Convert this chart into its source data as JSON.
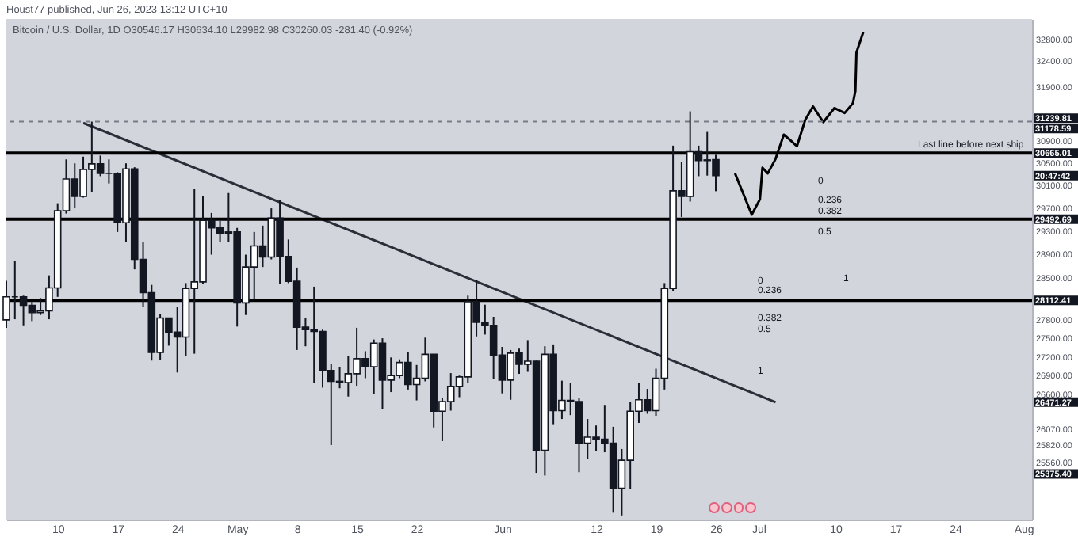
{
  "chart_data": {
    "type": "candlestick",
    "title": "Bitcoin / U.S. Dollar, 1D  O30546.17 H30634.10 L29982.98 C30260.03 -281.40 (-0.92%)",
    "subtitle": "Houst77 published, Jun 26, 2023 13:12 UTC+10",
    "x": [
      "2023-04-04",
      "2023-04-05",
      "2023-04-06",
      "2023-04-07",
      "2023-04-08",
      "2023-04-09",
      "2023-04-10",
      "2023-04-11",
      "2023-04-12",
      "2023-04-13",
      "2023-04-14",
      "2023-04-15",
      "2023-04-16",
      "2023-04-17",
      "2023-04-18",
      "2023-04-19",
      "2023-04-20",
      "2023-04-21",
      "2023-04-22",
      "2023-04-23",
      "2023-04-24",
      "2023-04-25",
      "2023-04-26",
      "2023-04-27",
      "2023-04-28",
      "2023-04-29",
      "2023-04-30",
      "2023-05-01",
      "2023-05-02",
      "2023-05-03",
      "2023-05-04",
      "2023-05-05",
      "2023-05-06",
      "2023-05-07",
      "2023-05-08",
      "2023-05-09",
      "2023-05-10",
      "2023-05-11",
      "2023-05-12",
      "2023-05-13",
      "2023-05-14",
      "2023-05-15",
      "2023-05-16",
      "2023-05-17",
      "2023-05-18",
      "2023-05-19",
      "2023-05-20",
      "2023-05-21",
      "2023-05-22",
      "2023-05-23",
      "2023-05-24",
      "2023-05-25",
      "2023-05-26",
      "2023-05-27",
      "2023-05-28",
      "2023-05-29",
      "2023-05-30",
      "2023-05-31",
      "2023-06-01",
      "2023-06-02",
      "2023-06-03",
      "2023-06-04",
      "2023-06-05",
      "2023-06-06",
      "2023-06-07",
      "2023-06-08",
      "2023-06-09",
      "2023-06-10",
      "2023-06-11",
      "2023-06-12",
      "2023-06-13",
      "2023-06-14",
      "2023-06-15",
      "2023-06-16",
      "2023-06-17",
      "2023-06-18",
      "2023-06-19",
      "2023-06-20",
      "2023-06-21",
      "2023-06-22",
      "2023-06-23",
      "2023-06-24",
      "2023-06-25",
      "2023-06-26"
    ],
    "ohlc": [
      [
        27790,
        28440,
        27660,
        28170
      ],
      [
        28170,
        28770,
        27800,
        28170
      ],
      [
        28170,
        28190,
        27700,
        28030
      ],
      [
        28030,
        28100,
        27770,
        27910
      ],
      [
        27910,
        28150,
        27870,
        27940
      ],
      [
        27940,
        28530,
        27800,
        28320
      ],
      [
        28320,
        29770,
        28170,
        29640
      ],
      [
        29640,
        30550,
        29590,
        30200
      ],
      [
        30200,
        30480,
        29680,
        29890
      ],
      [
        29890,
        30600,
        29870,
        30370
      ],
      [
        30370,
        31240,
        29970,
        30470
      ],
      [
        30470,
        30620,
        30250,
        30300
      ],
      [
        30300,
        30550,
        30120,
        30300
      ],
      [
        30300,
        30320,
        29270,
        29430
      ],
      [
        29430,
        30480,
        29100,
        30380
      ],
      [
        30380,
        30410,
        28630,
        28800
      ],
      [
        28800,
        29090,
        28010,
        28240
      ],
      [
        28240,
        28370,
        27130,
        27260
      ],
      [
        27260,
        27880,
        27140,
        27820
      ],
      [
        27820,
        27820,
        27370,
        27590
      ],
      [
        27590,
        28000,
        26940,
        27510
      ],
      [
        27510,
        28400,
        27210,
        28310
      ],
      [
        28310,
        30020,
        27240,
        28420
      ],
      [
        28420,
        29890,
        28380,
        29470
      ],
      [
        29470,
        29600,
        28880,
        29340
      ],
      [
        29340,
        29460,
        29090,
        29250
      ],
      [
        29250,
        29950,
        29100,
        29270
      ],
      [
        29270,
        29340,
        27680,
        28070
      ],
      [
        28070,
        28880,
        27870,
        28670
      ],
      [
        28670,
        29270,
        28120,
        29030
      ],
      [
        29030,
        29380,
        28670,
        28840
      ],
      [
        28840,
        29680,
        28800,
        29510
      ],
      [
        29510,
        29820,
        28380,
        28850
      ],
      [
        28850,
        29140,
        28400,
        28430
      ],
      [
        28430,
        28660,
        27300,
        27670
      ],
      [
        27670,
        27820,
        27360,
        27630
      ],
      [
        27630,
        28340,
        26780,
        27600
      ],
      [
        27600,
        27630,
        26700,
        26970
      ],
      [
        26970,
        27080,
        25810,
        26800
      ],
      [
        26800,
        27030,
        26690,
        26780
      ],
      [
        26780,
        27200,
        26560,
        26920
      ],
      [
        26920,
        27660,
        26730,
        27160
      ],
      [
        27160,
        27280,
        26850,
        27030
      ],
      [
        27030,
        27470,
        26600,
        27410
      ],
      [
        27410,
        27490,
        26360,
        26820
      ],
      [
        26820,
        27180,
        26630,
        26890
      ],
      [
        26890,
        27150,
        26850,
        27100
      ],
      [
        27100,
        27270,
        26670,
        26750
      ],
      [
        26750,
        27060,
        26500,
        26850
      ],
      [
        26850,
        27500,
        26800,
        27230
      ],
      [
        27230,
        27230,
        26080,
        26330
      ],
      [
        26330,
        26540,
        25870,
        26480
      ],
      [
        26480,
        26930,
        26340,
        26720
      ],
      [
        26720,
        26890,
        26550,
        26870
      ],
      [
        26870,
        28190,
        26780,
        28090
      ],
      [
        28090,
        28450,
        27520,
        27750
      ],
      [
        27750,
        28040,
        27550,
        27700
      ],
      [
        27700,
        27840,
        26840,
        27220
      ],
      [
        27220,
        27350,
        26610,
        26820
      ],
      [
        26820,
        27300,
        26510,
        27250
      ],
      [
        27250,
        27320,
        26920,
        27070
      ],
      [
        27070,
        27460,
        26950,
        27120
      ],
      [
        27120,
        27130,
        25390,
        25730
      ],
      [
        25730,
        27360,
        25350,
        27230
      ],
      [
        27230,
        27390,
        26130,
        26340
      ],
      [
        26340,
        26810,
        26210,
        26500
      ],
      [
        26500,
        26780,
        26270,
        26480
      ],
      [
        26480,
        26530,
        25400,
        25840
      ],
      [
        25840,
        26210,
        25600,
        25930
      ],
      [
        25930,
        26110,
        25720,
        25900
      ],
      [
        25900,
        26430,
        25700,
        25840
      ],
      [
        25840,
        26090,
        24800,
        25160
      ],
      [
        25160,
        25750,
        24760,
        25580
      ],
      [
        25580,
        26480,
        25150,
        26330
      ],
      [
        26330,
        26770,
        26150,
        26510
      ],
      [
        26510,
        26680,
        26290,
        26340
      ],
      [
        26340,
        27000,
        26260,
        26850
      ],
      [
        26850,
        28400,
        26670,
        28310
      ],
      [
        28310,
        30800,
        28260,
        29990
      ],
      [
        29990,
        30500,
        29530,
        29890
      ],
      [
        29890,
        31430,
        29800,
        30690
      ],
      [
        30690,
        30800,
        30250,
        30530
      ],
      [
        30530,
        31050,
        30260,
        30541.43
      ],
      [
        30546.17,
        30634.1,
        29982.98,
        30260.03
      ]
    ],
    "series": [
      {
        "type": "line",
        "color": "#2a2e39",
        "x": [
          "2023-04-13",
          "2023-07-03"
        ],
        "values": [
          31215,
          26471.27
        ]
      },
      {
        "type": "line",
        "color": "#000000",
        "x": [
          "2023-06-28T06:00",
          "2023-06-30T05:00",
          "2023-07-01T04:00",
          "2023-07-01T11:00",
          "2023-07-02T02:00",
          "2023-07-03T00:00",
          "2023-07-03T23:00",
          "2023-07-04T14:00",
          "2023-07-05T12:00",
          "2023-07-06T11:00",
          "2023-07-07T09:00",
          "2023-07-08T14:00",
          "2023-07-09T21:00",
          "2023-07-11T02:00",
          "2023-07-12T01:00",
          "2023-07-12T08:00",
          "2023-07-12T11:00",
          "2023-07-13T06:00"
        ],
        "values": [
          30300,
          29570,
          29840,
          30400,
          30300,
          30560,
          31000,
          30920,
          30790,
          31270,
          31520,
          31230,
          31490,
          31400,
          31580,
          31810,
          32540,
          32930
        ]
      }
    ],
    "ref_lines": [
      {
        "axis": "y",
        "value": 31239.81,
        "label": "31239.81",
        "color": "#787b86",
        "line_style": "dashed"
      },
      {
        "axis": "y",
        "value": 30665.01,
        "label": "30665.01",
        "color": "#000000",
        "line_style": "solid"
      },
      {
        "axis": "y",
        "value": 29492.69,
        "label": "29492.69",
        "color": "#000000",
        "line_style": "solid"
      },
      {
        "axis": "y",
        "value": 28112.41,
        "label": "28112.41",
        "color": "#000000",
        "line_style": "solid"
      }
    ],
    "annotations": [
      "31178.59",
      "20:47:42",
      "26471.27",
      "25375.40",
      "Last line before next ship",
      "0",
      "0.236",
      "0.382",
      "0.5",
      "0",
      "0.236",
      "0.382",
      "0.5",
      "1",
      "1"
    ],
    "log": "y",
    "ylim": [
      24700,
      33190
    ],
    "yticks": [
      {
        "value": 25560,
        "label": "25560.00"
      },
      {
        "value": 25820,
        "label": "25820.00"
      },
      {
        "value": 26070,
        "label": "26070.00"
      },
      {
        "value": 26600,
        "label": "26600.00"
      },
      {
        "value": 26900,
        "label": "26900.00"
      },
      {
        "value": 27200,
        "label": "27200.00"
      },
      {
        "value": 27500,
        "label": "27500.00"
      },
      {
        "value": 27800,
        "label": "27800.00"
      },
      {
        "value": 28500,
        "label": "28500.00"
      },
      {
        "value": 28900,
        "label": "28900.00"
      },
      {
        "value": 29300,
        "label": "29300.00"
      },
      {
        "value": 29700,
        "label": "29700.00"
      },
      {
        "value": 30100,
        "label": "30100.00"
      },
      {
        "value": 30500,
        "label": "30500.00"
      },
      {
        "value": 30900,
        "label": "30900.00"
      },
      {
        "value": 31900,
        "label": "31900.00"
      },
      {
        "value": 32400,
        "label": "32400.00"
      },
      {
        "value": 32800,
        "label": "32800.00"
      }
    ],
    "xlim": [
      "2023-04-04",
      "2023-08-02"
    ],
    "xticks": [
      {
        "value": "2023-04-10",
        "label": "10"
      },
      {
        "value": "2023-04-17",
        "label": "17"
      },
      {
        "value": "2023-04-24",
        "label": "24"
      },
      {
        "value": "2023-05-01",
        "label": "May"
      },
      {
        "value": "2023-05-08",
        "label": "8"
      },
      {
        "value": "2023-05-15",
        "label": "15"
      },
      {
        "value": "2023-05-22",
        "label": "22"
      },
      {
        "value": "2023-06-01",
        "label": "Jun"
      },
      {
        "value": "2023-06-12",
        "label": "12"
      },
      {
        "value": "2023-06-19",
        "label": "19"
      },
      {
        "value": "2023-06-26",
        "label": "26"
      },
      {
        "value": "2023-07-01",
        "label": "Jul"
      },
      {
        "value": "2023-07-10",
        "label": "10"
      },
      {
        "value": "2023-07-17",
        "label": "17"
      },
      {
        "value": "2023-07-24",
        "label": "24"
      },
      {
        "value": "2023-08-01",
        "label": "Aug"
      }
    ]
  }
}
